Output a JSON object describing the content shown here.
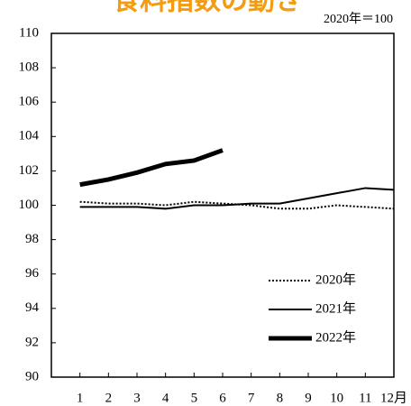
{
  "chart_data": {
    "type": "line",
    "title": "食料指数の動き",
    "unit_note": "2020年＝100",
    "x": [
      1,
      2,
      3,
      4,
      5,
      6,
      7,
      8,
      9,
      10,
      11,
      12
    ],
    "xlim": [
      0,
      12
    ],
    "xticks": [
      1,
      2,
      3,
      4,
      5,
      6,
      7,
      8,
      9,
      10,
      11,
      {
        "value": 12,
        "label": "12月"
      }
    ],
    "ylim": [
      90,
      110
    ],
    "yticks": [
      90,
      92,
      94,
      96,
      98,
      100,
      102,
      104,
      106,
      108,
      110
    ],
    "legend": "lower right",
    "series": [
      {
        "name": "2020年",
        "color": "#000000",
        "width": 2,
        "dash": "dotted",
        "values": [
          100.2,
          100.1,
          100.1,
          100.0,
          100.2,
          100.1,
          100.0,
          99.8,
          99.8,
          100.0,
          99.9,
          99.8
        ]
      },
      {
        "name": "2021年",
        "color": "#000000",
        "width": 2,
        "dash": "solid",
        "values": [
          99.9,
          99.9,
          99.9,
          99.8,
          100.0,
          100.0,
          100.1,
          100.1,
          100.4,
          100.7,
          101.0,
          100.9
        ]
      },
      {
        "name": "2022年",
        "color": "#000000",
        "width": 5,
        "dash": "solid",
        "values": [
          101.2,
          101.5,
          101.9,
          102.4,
          102.6,
          103.2,
          null,
          null,
          null,
          null,
          null,
          null
        ]
      }
    ]
  }
}
